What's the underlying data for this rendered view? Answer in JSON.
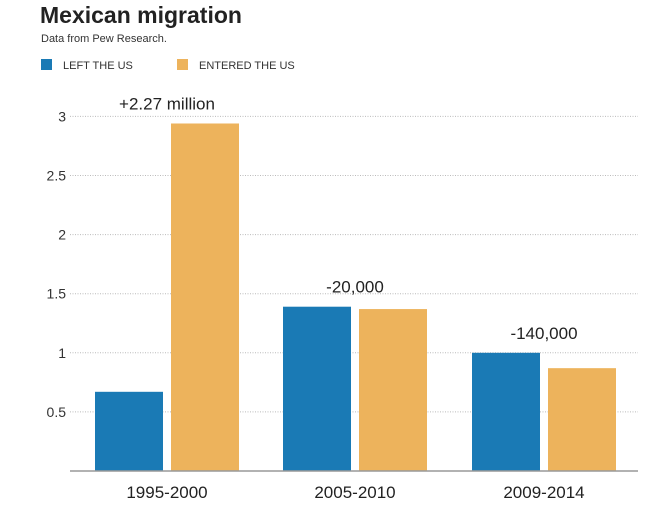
{
  "chart_data": {
    "type": "bar",
    "title": "Mexican migration",
    "subtitle": "Data from Pew Research.",
    "categories": [
      "1995-2000",
      "2005-2010",
      "2009-2014"
    ],
    "series": [
      {
        "name": "LEFT THE US",
        "color": "#1a7ab5",
        "values": [
          0.67,
          1.39,
          1.0
        ]
      },
      {
        "name": "ENTERED THE US",
        "color": "#edb35c",
        "values": [
          2.94,
          1.37,
          0.87
        ]
      }
    ],
    "annotations": [
      "+2.27 million",
      "-20,000",
      "-140,000"
    ],
    "yticks": [
      "0.5",
      "1",
      "1.5",
      "2",
      "2.5",
      "3"
    ],
    "ylim": [
      0,
      3
    ],
    "grid": true,
    "legend": "top-left",
    "xlabel": "",
    "ylabel": ""
  }
}
